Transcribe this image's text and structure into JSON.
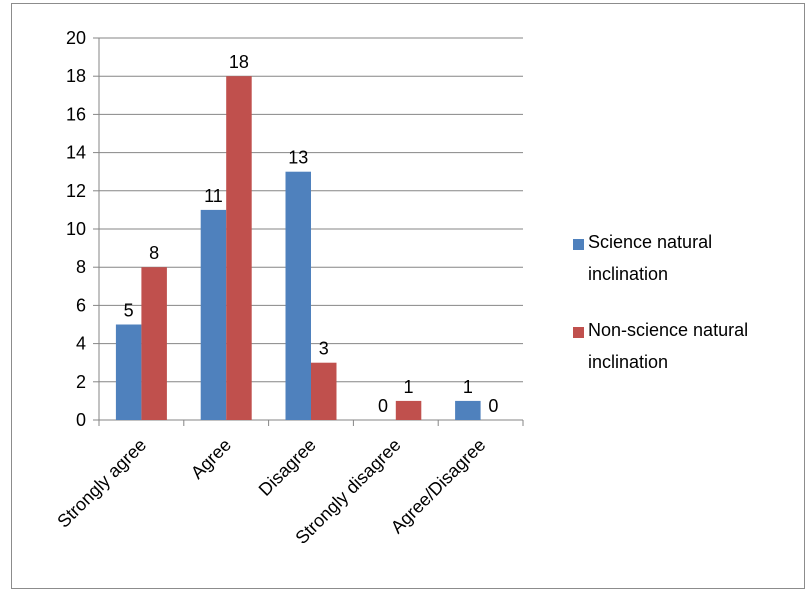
{
  "chart_data": {
    "type": "bar",
    "categories": [
      "Strongly agree",
      "Agree",
      "Disagree",
      "Strongly disagree",
      "Agree/Disagree"
    ],
    "series": [
      {
        "name": "Science natural inclination",
        "legend_lines": [
          "Science natural",
          "inclination"
        ],
        "color": "#4f81bd",
        "values": [
          5,
          11,
          13,
          0,
          1
        ]
      },
      {
        "name": "Non-science natural inclination",
        "legend_lines": [
          "Non-science natural",
          "inclination"
        ],
        "color": "#c0504d",
        "values": [
          8,
          18,
          3,
          1,
          0
        ]
      }
    ],
    "ylim": [
      0,
      20
    ],
    "yticks": [
      0,
      2,
      4,
      6,
      8,
      10,
      12,
      14,
      16,
      18,
      20
    ],
    "grid": true,
    "legend_position": "right",
    "data_labels": true
  }
}
